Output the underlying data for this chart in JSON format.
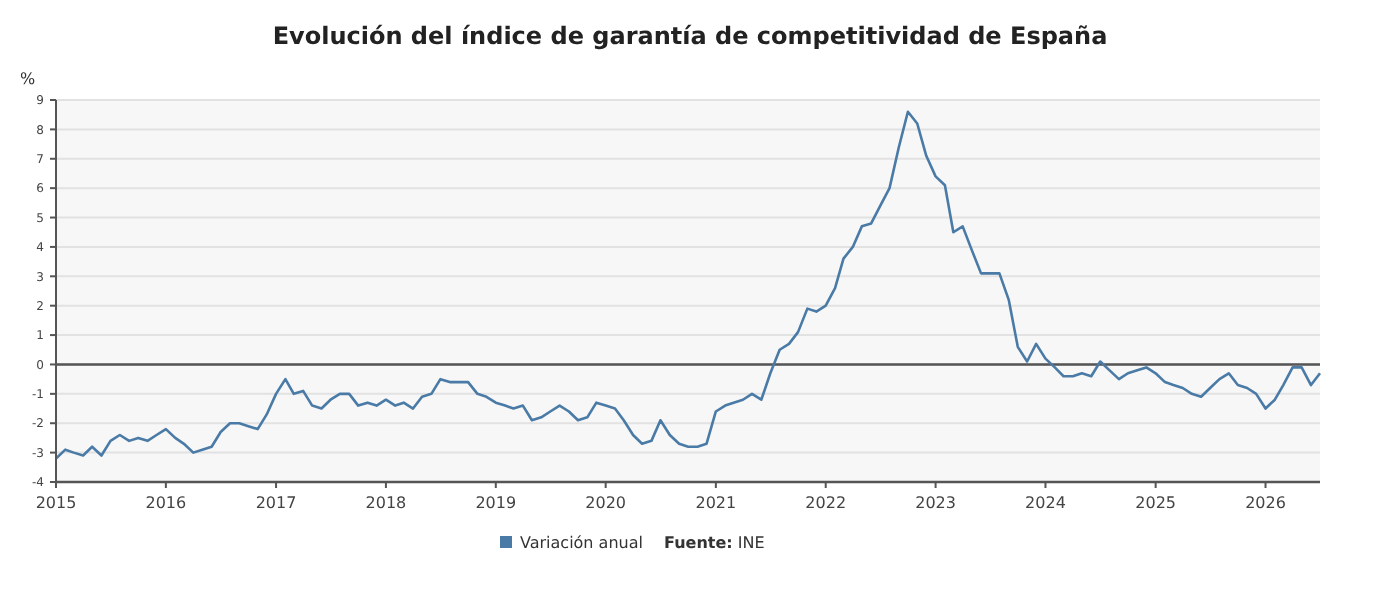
{
  "chart_data": {
    "type": "line",
    "title": "Evolución del índice de garantía de competitividad de España",
    "ylabel": "%",
    "x": [
      "2015-01",
      "2015-02",
      "2015-03",
      "2015-04",
      "2015-05",
      "2015-06",
      "2015-07",
      "2015-08",
      "2015-09",
      "2015-10",
      "2015-11",
      "2015-12",
      "2016-01",
      "2016-02",
      "2016-03",
      "2016-04",
      "2016-05",
      "2016-06",
      "2016-07",
      "2016-08",
      "2016-09",
      "2016-10",
      "2016-11",
      "2016-12",
      "2017-01",
      "2017-02",
      "2017-03",
      "2017-04",
      "2017-05",
      "2017-06",
      "2017-07",
      "2017-08",
      "2017-09",
      "2017-10",
      "2017-11",
      "2017-12",
      "2018-01",
      "2018-02",
      "2018-03",
      "2018-04",
      "2018-05",
      "2018-06",
      "2018-07",
      "2018-08",
      "2018-09",
      "2018-10",
      "2018-11",
      "2018-12",
      "2019-01",
      "2019-02",
      "2019-03",
      "2019-04",
      "2019-05",
      "2019-06",
      "2019-07",
      "2019-08",
      "2019-09",
      "2019-10",
      "2019-11",
      "2019-12",
      "2020-01",
      "2020-02",
      "2020-03",
      "2020-04",
      "2020-05",
      "2020-06",
      "2020-07",
      "2020-08",
      "2020-09",
      "2020-10",
      "2020-11",
      "2020-12",
      "2021-01",
      "2021-02",
      "2021-03",
      "2021-04",
      "2021-05",
      "2021-06",
      "2021-07",
      "2021-08",
      "2021-09",
      "2021-10",
      "2021-11",
      "2021-12",
      "2022-01",
      "2022-02",
      "2022-03",
      "2022-04",
      "2022-05",
      "2022-06",
      "2022-07",
      "2022-08",
      "2022-09",
      "2022-10",
      "2022-11",
      "2022-12",
      "2023-01",
      "2023-02",
      "2023-03",
      "2023-04",
      "2023-05",
      "2023-06",
      "2023-07",
      "2023-08",
      "2023-09",
      "2023-10",
      "2023-11",
      "2023-12",
      "2024-01",
      "2024-02",
      "2024-03",
      "2024-04",
      "2024-05",
      "2024-06",
      "2024-07",
      "2024-08",
      "2024-09",
      "2024-10",
      "2024-11",
      "2024-12",
      "2025-01",
      "2025-02",
      "2025-03",
      "2025-04",
      "2025-05",
      "2025-06",
      "2025-07",
      "2025-08",
      "2025-09",
      "2025-10",
      "2025-11",
      "2025-12",
      "2026-01",
      "2026-02",
      "2026-03",
      "2026-04",
      "2026-05",
      "2026-06",
      "2026-07"
    ],
    "series": [
      {
        "name": "Variación anual",
        "color": "#4a7aa6",
        "values": [
          -3.2,
          -2.9,
          -3.0,
          -3.1,
          -2.8,
          -3.1,
          -2.6,
          -2.4,
          -2.6,
          -2.5,
          -2.6,
          -2.4,
          -2.2,
          -2.5,
          -2.7,
          -3.0,
          -2.9,
          -2.8,
          -2.3,
          -2.0,
          -2.0,
          -2.1,
          -2.2,
          -1.7,
          -1.0,
          -0.5,
          -1.0,
          -0.9,
          -1.4,
          -1.5,
          -1.2,
          -1.0,
          -1.0,
          -1.4,
          -1.3,
          -1.4,
          -1.2,
          -1.4,
          -1.3,
          -1.5,
          -1.1,
          -1.0,
          -0.5,
          -0.6,
          -0.6,
          -0.6,
          -1.0,
          -1.1,
          -1.3,
          -1.4,
          -1.5,
          -1.4,
          -1.9,
          -1.8,
          -1.6,
          -1.4,
          -1.6,
          -1.9,
          -1.8,
          -1.3,
          -1.4,
          -1.5,
          -1.9,
          -2.4,
          -2.7,
          -2.6,
          -1.9,
          -2.4,
          -2.7,
          -2.8,
          -2.8,
          -2.7,
          -1.6,
          -1.4,
          -1.3,
          -1.2,
          -1.0,
          -1.2,
          -0.3,
          0.5,
          0.7,
          1.1,
          1.9,
          1.8,
          2.0,
          2.6,
          3.6,
          4.0,
          4.7,
          4.8,
          5.4,
          6.0,
          7.4,
          8.6,
          8.2,
          7.1,
          6.4,
          6.1,
          4.5,
          4.7,
          3.9,
          3.1,
          3.1,
          3.1,
          2.2,
          0.6,
          0.1,
          0.7,
          0.2,
          -0.1,
          -0.4,
          -0.4,
          -0.3,
          -0.4,
          0.1,
          -0.2,
          -0.5,
          -0.3,
          -0.2,
          -0.1,
          -0.3,
          -0.6,
          -0.7,
          -0.8,
          -1.0,
          -1.1,
          -0.8,
          -0.5,
          -0.3,
          -0.7,
          -0.8,
          -1.0,
          -1.5,
          -1.2,
          -0.7,
          -0.1,
          -0.1,
          -0.7,
          -0.3
        ]
      }
    ],
    "xlim": [
      "2015-01",
      "2026-07"
    ],
    "xticks": [
      {
        "value": "2015-01",
        "label": "2015"
      },
      {
        "value": "2016-01",
        "label": "2016"
      },
      {
        "value": "2017-01",
        "label": "2017"
      },
      {
        "value": "2018-01",
        "label": "2018"
      },
      {
        "value": "2019-01",
        "label": "2019"
      },
      {
        "value": "2020-01",
        "label": "2020"
      },
      {
        "value": "2021-01",
        "label": "2021"
      },
      {
        "value": "2022-01",
        "label": "2022"
      },
      {
        "value": "2023-01",
        "label": "2023"
      },
      {
        "value": "2024-01",
        "label": "2024"
      },
      {
        "value": "2025-01",
        "label": "2025"
      },
      {
        "value": "2026-01",
        "label": "2026"
      }
    ],
    "ylim": [
      -4,
      9
    ],
    "yticks": [
      -4,
      -3,
      -2,
      -1,
      0,
      1,
      2,
      3,
      4,
      5,
      6,
      7,
      8,
      9
    ],
    "grid": "y",
    "legend": "bottom",
    "marker": "none",
    "line_style": "solid",
    "ref_lines": [
      {
        "axis": "y",
        "value": 0,
        "color": "#555555"
      }
    ],
    "annotations": [
      "Fuente: INE"
    ]
  }
}
